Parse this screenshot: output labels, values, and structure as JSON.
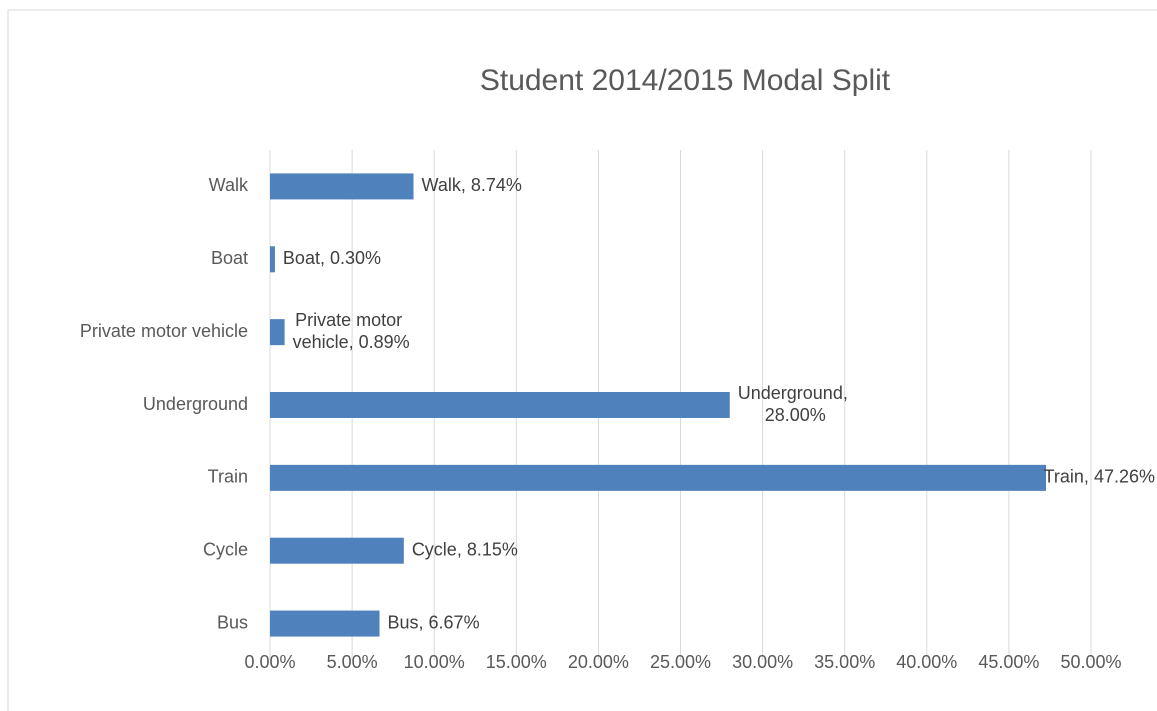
{
  "chart_data": {
    "type": "bar",
    "orientation": "horizontal",
    "title": "Student 2014/2015 Modal Split",
    "categories": [
      "Bus",
      "Cycle",
      "Train",
      "Underground",
      "Private motor vehicle",
      "Boat",
      "Walk"
    ],
    "values": [
      6.67,
      8.15,
      47.26,
      28.0,
      0.89,
      0.3,
      8.74
    ],
    "value_labels": [
      "Bus, 6.67%",
      "Cycle, 8.15%",
      "Train, 47.26%",
      "Underground, 28.00%",
      "Private motor vehicle, 0.89%",
      "Boat, 0.30%",
      "Walk, 8.74%"
    ],
    "color": "#4f81bd",
    "xlim": [
      0,
      50
    ],
    "xticks": [
      {
        "value": 0,
        "label": "0.00%"
      },
      {
        "value": 5,
        "label": "5.00%"
      },
      {
        "value": 10,
        "label": "10.00%"
      },
      {
        "value": 15,
        "label": "15.00%"
      },
      {
        "value": 20,
        "label": "20.00%"
      },
      {
        "value": 25,
        "label": "25.00%"
      },
      {
        "value": 30,
        "label": "30.00%"
      },
      {
        "value": 35,
        "label": "35.00%"
      },
      {
        "value": 40,
        "label": "40.00%"
      },
      {
        "value": 45,
        "label": "45.00%"
      },
      {
        "value": 50,
        "label": "50.00%"
      }
    ],
    "grid": true
  }
}
